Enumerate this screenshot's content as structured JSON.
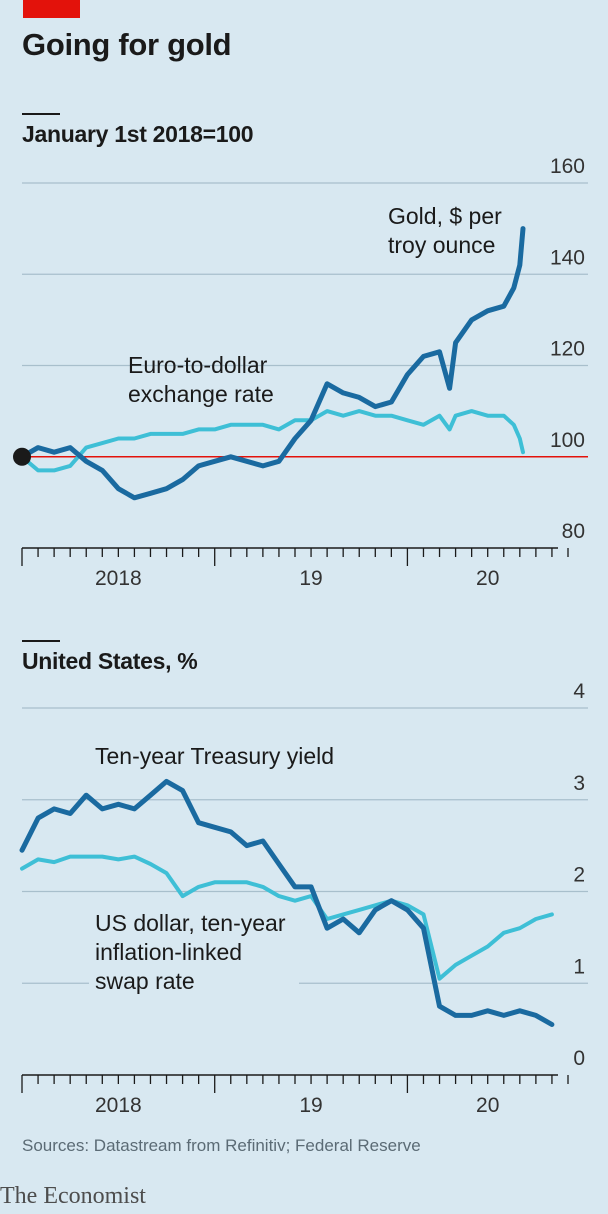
{
  "header": {
    "title": "Going for gold"
  },
  "panels": {
    "top": {
      "subtitle": "January 1st 2018=100"
    },
    "bottom": {
      "subtitle": "United States, %"
    }
  },
  "footer": {
    "source": "Sources: Datastream from Refinitiv; Federal Reserve",
    "brand": "The Economist"
  },
  "colors": {
    "background": "#d8e8f1",
    "dark_blue": "#1a6aa0",
    "light_blue": "#3ebfd6",
    "red_baseline": "#e3120b",
    "gridline": "#a8bfcc"
  },
  "chart_data": [
    {
      "type": "line",
      "ylim": [
        80,
        160
      ],
      "yticks": [
        "160",
        "140",
        "120",
        "100",
        "80"
      ],
      "ytick_values": [
        160,
        140,
        120,
        100,
        80
      ],
      "xlim": [
        "2018-01",
        "2020-11"
      ],
      "xticks": [
        "2018",
        "19",
        "20"
      ],
      "baseline": 100,
      "start_marker": "2018-01-01",
      "annotations": [
        "Gold, $ per\ntroy ounce",
        "Euro-to-dollar\nexchange rate"
      ],
      "series": [
        {
          "name": "Gold, $ per troy ounce",
          "color": "#1a6aa0",
          "x": [
            "2018-01-01",
            "2018-02-01",
            "2018-03-01",
            "2018-04-01",
            "2018-05-01",
            "2018-06-01",
            "2018-07-01",
            "2018-08-01",
            "2018-09-01",
            "2018-10-01",
            "2018-11-01",
            "2018-12-01",
            "2019-01-01",
            "2019-02-01",
            "2019-03-01",
            "2019-04-01",
            "2019-05-01",
            "2019-06-01",
            "2019-07-01",
            "2019-08-01",
            "2019-09-01",
            "2019-10-01",
            "2019-11-01",
            "2019-12-01",
            "2020-01-01",
            "2020-02-01",
            "2020-03-01",
            "2020-03-20",
            "2020-04-01",
            "2020-05-01",
            "2020-06-01",
            "2020-07-01",
            "2020-07-20",
            "2020-08-01",
            "2020-08-07"
          ],
          "y": [
            100,
            102,
            101,
            102,
            99,
            97,
            93,
            91,
            92,
            93,
            95,
            98,
            99,
            100,
            99,
            98,
            99,
            104,
            108,
            116,
            114,
            113,
            111,
            112,
            118,
            122,
            123,
            115,
            125,
            130,
            132,
            133,
            137,
            142,
            150
          ]
        },
        {
          "name": "Euro-to-dollar exchange rate",
          "color": "#3ebfd6",
          "x": [
            "2018-01-01",
            "2018-02-01",
            "2018-03-01",
            "2018-04-01",
            "2018-05-01",
            "2018-06-01",
            "2018-07-01",
            "2018-08-01",
            "2018-09-01",
            "2018-10-01",
            "2018-11-01",
            "2018-12-01",
            "2019-01-01",
            "2019-02-01",
            "2019-03-01",
            "2019-04-01",
            "2019-05-01",
            "2019-06-01",
            "2019-07-01",
            "2019-08-01",
            "2019-09-01",
            "2019-10-01",
            "2019-11-01",
            "2019-12-01",
            "2020-01-01",
            "2020-02-01",
            "2020-03-01",
            "2020-03-20",
            "2020-04-01",
            "2020-05-01",
            "2020-06-01",
            "2020-07-01",
            "2020-07-20",
            "2020-08-01",
            "2020-08-07"
          ],
          "y": [
            100,
            97,
            97,
            98,
            102,
            103,
            104,
            104,
            105,
            105,
            105,
            106,
            106,
            107,
            107,
            107,
            106,
            108,
            108,
            110,
            109,
            110,
            109,
            109,
            108,
            107,
            109,
            106,
            109,
            110,
            109,
            109,
            107,
            104,
            101
          ]
        }
      ]
    },
    {
      "type": "line",
      "ylim": [
        0,
        4
      ],
      "yticks": [
        "4",
        "3",
        "2",
        "1",
        "0"
      ],
      "ytick_values": [
        4,
        3,
        2,
        1,
        0
      ],
      "xlim": [
        "2018-01",
        "2020-11"
      ],
      "xticks": [
        "2018",
        "19",
        "20"
      ],
      "annotations": [
        "Ten-year Treasury yield",
        "US dollar, ten-year\ninflation-linked\nswap rate"
      ],
      "series": [
        {
          "name": "Ten-year Treasury yield",
          "color": "#1a6aa0",
          "x": [
            "2018-01-01",
            "2018-02-01",
            "2018-03-01",
            "2018-04-01",
            "2018-05-01",
            "2018-06-01",
            "2018-07-01",
            "2018-08-01",
            "2018-09-01",
            "2018-10-01",
            "2018-11-01",
            "2018-12-01",
            "2019-01-01",
            "2019-02-01",
            "2019-03-01",
            "2019-04-01",
            "2019-05-01",
            "2019-06-01",
            "2019-07-01",
            "2019-08-01",
            "2019-09-01",
            "2019-10-01",
            "2019-11-01",
            "2019-12-01",
            "2020-01-01",
            "2020-02-01",
            "2020-03-01",
            "2020-04-01",
            "2020-05-01",
            "2020-06-01",
            "2020-07-01",
            "2020-08-01",
            "2020-09-01",
            "2020-10-01"
          ],
          "y": [
            2.45,
            2.8,
            2.9,
            2.85,
            3.05,
            2.9,
            2.95,
            2.9,
            3.05,
            3.2,
            3.1,
            2.75,
            2.7,
            2.65,
            2.5,
            2.55,
            2.3,
            2.05,
            2.05,
            1.6,
            1.7,
            1.55,
            1.8,
            1.9,
            1.8,
            1.6,
            0.75,
            0.65,
            0.65,
            0.7,
            0.65,
            0.7,
            0.65,
            0.55
          ]
        },
        {
          "name": "US dollar, ten-year inflation-linked swap rate",
          "color": "#3ebfd6",
          "x": [
            "2018-01-01",
            "2018-02-01",
            "2018-03-01",
            "2018-04-01",
            "2018-05-01",
            "2018-06-01",
            "2018-07-01",
            "2018-08-01",
            "2018-09-01",
            "2018-10-01",
            "2018-11-01",
            "2018-12-01",
            "2019-01-01",
            "2019-02-01",
            "2019-03-01",
            "2019-04-01",
            "2019-05-01",
            "2019-06-01",
            "2019-07-01",
            "2019-08-01",
            "2019-09-01",
            "2019-10-01",
            "2019-11-01",
            "2019-12-01",
            "2020-01-01",
            "2020-02-01",
            "2020-03-01",
            "2020-04-01",
            "2020-05-01",
            "2020-06-01",
            "2020-07-01",
            "2020-08-01",
            "2020-09-01",
            "2020-10-01"
          ],
          "y": [
            2.25,
            2.35,
            2.32,
            2.38,
            2.38,
            2.38,
            2.35,
            2.38,
            2.3,
            2.2,
            1.95,
            2.05,
            2.1,
            2.1,
            2.1,
            2.05,
            1.95,
            1.9,
            1.95,
            1.7,
            1.75,
            1.8,
            1.85,
            1.9,
            1.85,
            1.75,
            1.05,
            1.2,
            1.3,
            1.4,
            1.55,
            1.6,
            1.7,
            1.75
          ]
        }
      ]
    }
  ]
}
